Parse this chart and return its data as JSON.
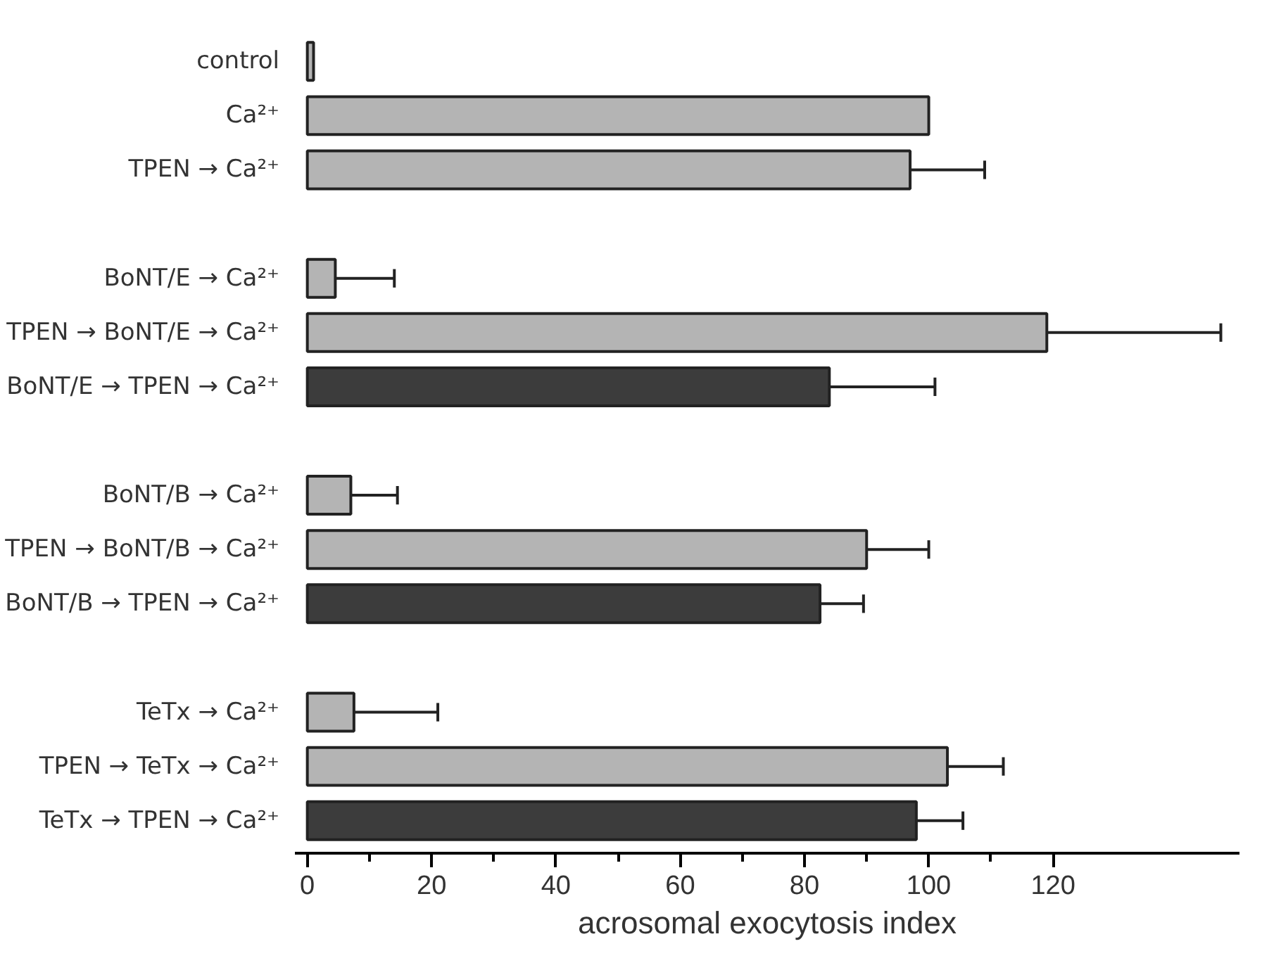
{
  "chart_data": {
    "type": "bar",
    "orientation": "horizontal",
    "xlabel": "acrosomal exocytosis index",
    "categories": [
      "control",
      "Ca²⁺",
      "TPEN → Ca²⁺",
      null,
      "BoNT/E → Ca²⁺",
      "TPEN → BoNT/E → Ca²⁺",
      "BoNT/E → TPEN → Ca²⁺",
      null,
      "BoNT/B → Ca²⁺",
      "TPEN → BoNT/B → Ca²⁺",
      "BoNT/B → TPEN → Ca²⁺",
      null,
      "TeTx → Ca²⁺",
      "TPEN → TeTx → Ca²⁺",
      "TeTx → TPEN → Ca²⁺"
    ],
    "values": [
      1,
      100,
      97,
      null,
      4.5,
      119,
      84,
      null,
      7,
      90,
      82.5,
      null,
      7.5,
      103,
      98
    ],
    "errors": [
      null,
      null,
      [
        97,
        109
      ],
      null,
      [
        4.5,
        14
      ],
      [
        119,
        147
      ],
      [
        84,
        101
      ],
      null,
      [
        7,
        14.5
      ],
      [
        90,
        100
      ],
      [
        82.5,
        89.5
      ],
      null,
      [
        7.5,
        21
      ],
      [
        103,
        112
      ],
      [
        98,
        105.5
      ]
    ],
    "colors": [
      "#b4b4b4",
      "#b4b4b4",
      "#b4b4b4",
      null,
      "#b4b4b4",
      "#b4b4b4",
      "#3c3c3c",
      null,
      "#b4b4b4",
      "#b4b4b4",
      "#3c3c3c",
      null,
      "#b4b4b4",
      "#b4b4b4",
      "#3c3c3c"
    ],
    "xlim": [
      -2,
      150
    ],
    "xticks": [
      0,
      {
        "value": 10,
        "label": null
      },
      20,
      {
        "value": 30,
        "label": null
      },
      40,
      {
        "value": 50,
        "label": null
      },
      60,
      {
        "value": 70,
        "label": null
      },
      80,
      {
        "value": 90,
        "label": null
      },
      100,
      {
        "value": 110,
        "label": null
      },
      120
    ],
    "grid": false
  }
}
